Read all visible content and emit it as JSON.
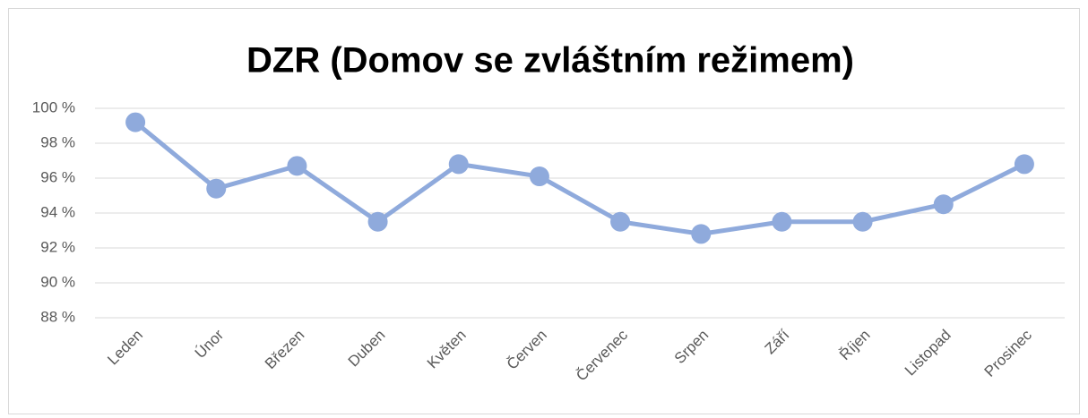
{
  "chart_data": {
    "type": "line",
    "title": "DZR (Domov se zvláštním režimem)",
    "categories": [
      "Leden",
      "Únor",
      "Březen",
      "Duben",
      "Květen",
      "Červen",
      "Červenec",
      "Srpen",
      "Září",
      "Říjen",
      "Listopad",
      "Prosinec"
    ],
    "series": [
      {
        "name": "DZR",
        "color": "#8faadc",
        "values": [
          99.2,
          95.4,
          96.7,
          93.5,
          96.8,
          96.1,
          93.5,
          92.8,
          93.5,
          93.5,
          94.5,
          96.8
        ]
      }
    ],
    "ylim": [
      88,
      100
    ],
    "yticks": [
      {
        "value": 88,
        "label": "88 %"
      },
      {
        "value": 90,
        "label": "90 %"
      },
      {
        "value": 92,
        "label": "92 %"
      },
      {
        "value": 94,
        "label": "94 %"
      },
      {
        "value": 96,
        "label": "96 %"
      },
      {
        "value": 98,
        "label": "98 %"
      },
      {
        "value": 100,
        "label": "100 %"
      }
    ],
    "grid": true
  }
}
